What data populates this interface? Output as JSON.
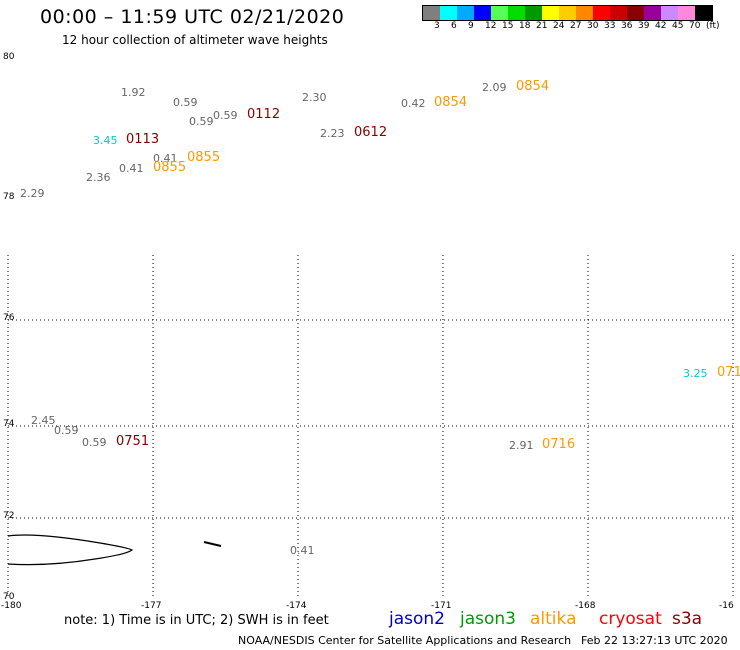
{
  "title": "00:00 – 11:59 UTC 02/21/2020",
  "subtitle": "12 hour collection of altimeter wave heights",
  "legend": {
    "colors": [
      "#7f7f7f",
      "#00ffff",
      "#00aaff",
      "#0000ff",
      "#55ff55",
      "#00dd00",
      "#009900",
      "#ffff00",
      "#ffcc00",
      "#ff8800",
      "#ff0000",
      "#cc0000",
      "#880000",
      "#990099",
      "#cc88ff",
      "#ff88dd",
      "#000000"
    ],
    "labels": [
      "3",
      "6",
      "9",
      "12",
      "15",
      "18",
      "21",
      "24",
      "27",
      "30",
      "33",
      "36",
      "39",
      "42",
      "45",
      "70",
      "(ft)"
    ]
  },
  "axes": {
    "lat_labels": [
      "80",
      "78",
      "76",
      "74",
      "72",
      "70"
    ],
    "lon_labels": [
      "-180",
      "-177",
      "-174",
      "-171",
      "-168",
      "-16"
    ]
  },
  "observations": [
    {
      "swh": "1.92",
      "swh_color": "#666666"
    },
    {
      "swh": "0.59",
      "swh_color": "#666666"
    },
    {
      "swh": "0.59",
      "swh_color": "#666666"
    },
    {
      "swh": "0.59",
      "swh_color": "#666666",
      "time": "0112",
      "time_color": "#880000"
    },
    {
      "swh": "2.30",
      "swh_color": "#666666"
    },
    {
      "swh": "2.23",
      "swh_color": "#666666",
      "time": "0612",
      "time_color": "#880000"
    },
    {
      "swh": "0.42",
      "swh_color": "#666666",
      "time": "0854",
      "time_color": "#ff9900"
    },
    {
      "swh": "2.09",
      "swh_color": "#666666",
      "time": "0854",
      "time_color": "#ff9900"
    },
    {
      "swh": "3.45",
      "swh_color": "#00cccc",
      "time": "0113",
      "time_color": "#880000"
    },
    {
      "swh": "0.41",
      "swh_color": "#666666",
      "time": "0855",
      "time_color": "#ff9900"
    },
    {
      "swh": "0.41",
      "swh_color": "#666666",
      "time": "0855",
      "time_color": "#ff9900"
    },
    {
      "swh": "2.36",
      "swh_color": "#666666"
    },
    {
      "swh": "2.29",
      "swh_color": "#666666"
    },
    {
      "swh": "2.45",
      "swh_color": "#666666"
    },
    {
      "swh": "0.59",
      "swh_color": "#666666"
    },
    {
      "swh": "0.59",
      "swh_color": "#666666",
      "time": "0751",
      "time_color": "#880000"
    },
    {
      "swh": "2.91",
      "swh_color": "#666666",
      "time": "0716",
      "time_color": "#ff9900"
    },
    {
      "swh": "3.25",
      "swh_color": "#00cccc",
      "time": "071",
      "time_color": "#ff9900"
    },
    {
      "swh": "0.41",
      "swh_color": "#666666"
    }
  ],
  "note": "note: 1) Time is in UTC; 2) SWH is in feet",
  "satellites": [
    {
      "name": "jason2",
      "color": "#0000cc"
    },
    {
      "name": "jason3",
      "color": "#009900"
    },
    {
      "name": "altika",
      "color": "#ff9900"
    },
    {
      "name": "cryosat",
      "color": "#ff0000"
    },
    {
      "name": "s3a",
      "color": "#880000"
    }
  ],
  "footer_left": "NOAA/NESDIS Center for Satellite Applications and Research",
  "footer_right": "Feb 22 13:27:13 UTC 2020"
}
